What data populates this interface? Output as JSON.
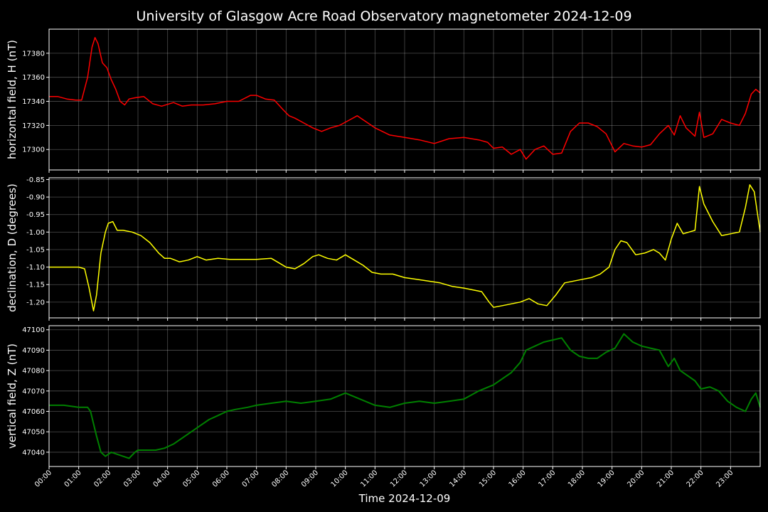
{
  "chart_data": {
    "type": "line",
    "title": "University of Glasgow Acre Road Observatory magnetometer 2024-12-09",
    "xlabel": "Time 2024-12-09",
    "x_ticks": [
      "00:00",
      "01:00",
      "02:00",
      "03:00",
      "04:00",
      "05:00",
      "06:00",
      "07:00",
      "08:00",
      "09:00",
      "10:00",
      "11:00",
      "12:00",
      "13:00",
      "14:00",
      "15:00",
      "16:00",
      "17:00",
      "18:00",
      "19:00",
      "20:00",
      "21:00",
      "22:00",
      "23:00"
    ],
    "xlim_hours": [
      0,
      24
    ],
    "grid": true,
    "background": "#000000",
    "panels": [
      {
        "ylabel": "horizontal field, H (nT)",
        "color": "#ff0000",
        "ylim": [
          17283,
          17400
        ],
        "yticks": [
          17300,
          17320,
          17340,
          17360,
          17380
        ],
        "ytick_labels": [
          "17300",
          "17320",
          "17340",
          "17360",
          "17380"
        ],
        "x_hours": [
          0,
          0.3,
          0.6,
          0.9,
          1.1,
          1.3,
          1.45,
          1.55,
          1.65,
          1.8,
          1.95,
          2.1,
          2.25,
          2.4,
          2.55,
          2.7,
          2.9,
          3.2,
          3.5,
          3.8,
          4.2,
          4.5,
          4.8,
          5.2,
          5.6,
          6.0,
          6.4,
          6.8,
          7.0,
          7.3,
          7.6,
          7.9,
          8.1,
          8.3,
          8.6,
          8.9,
          9.2,
          9.5,
          9.8,
          10.1,
          10.4,
          10.7,
          11.0,
          11.5,
          12.0,
          12.5,
          13.0,
          13.5,
          14.0,
          14.5,
          14.8,
          15.0,
          15.3,
          15.6,
          15.9,
          16.1,
          16.4,
          16.7,
          17.0,
          17.3,
          17.6,
          17.9,
          18.2,
          18.5,
          18.8,
          19.1,
          19.4,
          19.7,
          20.0,
          20.3,
          20.6,
          20.9,
          21.1,
          21.3,
          21.5,
          21.8,
          21.95,
          22.1,
          22.4,
          22.7,
          23.0,
          23.3,
          23.5,
          23.7,
          23.85,
          24.0
        ],
        "values": [
          17344,
          17344,
          17342,
          17341,
          17341,
          17360,
          17385,
          17393,
          17388,
          17372,
          17368,
          17358,
          17350,
          17340,
          17337,
          17342,
          17343,
          17344,
          17338,
          17336,
          17339,
          17336,
          17337,
          17337,
          17338,
          17340,
          17340,
          17345,
          17345,
          17342,
          17341,
          17333,
          17328,
          17326,
          17322,
          17318,
          17315,
          17318,
          17320,
          17324,
          17328,
          17323,
          17318,
          17312,
          17310,
          17308,
          17305,
          17309,
          17310,
          17308,
          17306,
          17301,
          17302,
          17296,
          17300,
          17292,
          17300,
          17303,
          17296,
          17297,
          17315,
          17322,
          17322,
          17319,
          17313,
          17298,
          17305,
          17303,
          17302,
          17304,
          17313,
          17320,
          17312,
          17328,
          17318,
          17311,
          17331,
          17310,
          17313,
          17325,
          17322,
          17320,
          17330,
          17346,
          17350,
          17347
        ]
      },
      {
        "ylabel": "declination, D (degrees)",
        "color": "#ffff00",
        "ylim": [
          -1.245,
          -0.845
        ],
        "yticks": [
          -1.2,
          -1.15,
          -1.1,
          -1.05,
          -1.0,
          -0.95,
          -0.9,
          -0.85
        ],
        "ytick_labels": [
          "-1.20",
          "-1.15",
          "-1.10",
          "-1.05",
          "-1.00",
          "-0.95",
          "-0.90",
          "-0.85"
        ],
        "x_hours": [
          0,
          0.5,
          1.0,
          1.2,
          1.35,
          1.5,
          1.6,
          1.75,
          1.9,
          2.0,
          2.15,
          2.3,
          2.5,
          2.8,
          3.1,
          3.4,
          3.7,
          3.9,
          4.1,
          4.4,
          4.7,
          5.0,
          5.3,
          5.7,
          6.1,
          6.5,
          7.0,
          7.5,
          7.8,
          8.0,
          8.3,
          8.6,
          8.9,
          9.1,
          9.4,
          9.7,
          10.0,
          10.3,
          10.6,
          10.9,
          11.2,
          11.6,
          12.0,
          12.4,
          12.8,
          13.2,
          13.6,
          14.0,
          14.3,
          14.6,
          14.85,
          15.0,
          15.3,
          15.6,
          15.9,
          16.2,
          16.5,
          16.8,
          17.1,
          17.4,
          17.7,
          18.0,
          18.3,
          18.6,
          18.9,
          19.1,
          19.3,
          19.5,
          19.8,
          20.1,
          20.4,
          20.6,
          20.8,
          21.0,
          21.2,
          21.4,
          21.6,
          21.8,
          21.95,
          22.1,
          22.4,
          22.7,
          23.0,
          23.3,
          23.5,
          23.65,
          23.8,
          24.0
        ],
        "values": [
          -1.1,
          -1.1,
          -1.1,
          -1.105,
          -1.16,
          -1.225,
          -1.18,
          -1.06,
          -1.0,
          -0.975,
          -0.97,
          -0.995,
          -0.995,
          -1.0,
          -1.01,
          -1.03,
          -1.06,
          -1.075,
          -1.075,
          -1.085,
          -1.08,
          -1.07,
          -1.08,
          -1.075,
          -1.078,
          -1.078,
          -1.078,
          -1.075,
          -1.09,
          -1.1,
          -1.105,
          -1.09,
          -1.07,
          -1.065,
          -1.075,
          -1.08,
          -1.065,
          -1.08,
          -1.095,
          -1.115,
          -1.12,
          -1.12,
          -1.13,
          -1.135,
          -1.14,
          -1.145,
          -1.155,
          -1.16,
          -1.165,
          -1.17,
          -1.2,
          -1.215,
          -1.21,
          -1.205,
          -1.2,
          -1.19,
          -1.205,
          -1.21,
          -1.18,
          -1.145,
          -1.14,
          -1.135,
          -1.13,
          -1.12,
          -1.1,
          -1.05,
          -1.025,
          -1.03,
          -1.065,
          -1.06,
          -1.05,
          -1.06,
          -1.08,
          -1.02,
          -0.975,
          -1.005,
          -1.0,
          -0.995,
          -0.87,
          -0.92,
          -0.97,
          -1.01,
          -1.005,
          -1.0,
          -0.93,
          -0.865,
          -0.885,
          -1.0
        ]
      },
      {
        "ylabel": "vertical field, Z (nT)",
        "color": "#008000",
        "ylim": [
          47033,
          47102
        ],
        "yticks": [
          47040,
          47050,
          47060,
          47070,
          47080,
          47090,
          47100
        ],
        "ytick_labels": [
          "47040",
          "47050",
          "47060",
          "47070",
          "47080",
          "47090",
          "47100"
        ],
        "x_hours": [
          0,
          0.5,
          1.0,
          1.3,
          1.4,
          1.6,
          1.75,
          1.9,
          2.1,
          2.3,
          2.5,
          2.7,
          2.9,
          3.0,
          3.3,
          3.6,
          3.9,
          4.2,
          4.5,
          4.8,
          5.1,
          5.4,
          5.7,
          6.0,
          6.3,
          6.7,
          7.0,
          7.5,
          8.0,
          8.5,
          9.0,
          9.5,
          10.0,
          10.5,
          11.0,
          11.5,
          12.0,
          12.5,
          13.0,
          13.5,
          14.0,
          14.5,
          15.0,
          15.3,
          15.6,
          15.9,
          16.1,
          16.4,
          16.7,
          17.0,
          17.3,
          17.6,
          17.9,
          18.2,
          18.5,
          18.8,
          19.1,
          19.4,
          19.7,
          20.0,
          20.3,
          20.6,
          20.9,
          21.1,
          21.3,
          21.6,
          21.8,
          22.0,
          22.3,
          22.6,
          22.9,
          23.2,
          23.5,
          23.7,
          23.85,
          24.0
        ],
        "values": [
          47063,
          47063,
          47062,
          47062,
          47060,
          47048,
          47040,
          47038,
          47040,
          47039,
          47038,
          47037,
          47040,
          47041,
          47041,
          47041,
          47042,
          47044,
          47047,
          47050,
          47053,
          47056,
          47058,
          47060,
          47061,
          47062,
          47063,
          47064,
          47065,
          47064,
          47065,
          47066,
          47069,
          47066,
          47063,
          47062,
          47064,
          47065,
          47064,
          47065,
          47066,
          47070,
          47073,
          47076,
          47079,
          47084,
          47090,
          47092,
          47094,
          47095,
          47096,
          47090,
          47087,
          47086,
          47086,
          47089,
          47091,
          47098,
          47094,
          47092,
          47091,
          47090,
          47082,
          47086,
          47080,
          47077,
          47075,
          47071,
          47072,
          47070,
          47065,
          47062,
          47060,
          47066,
          47069,
          47062
        ]
      }
    ]
  }
}
